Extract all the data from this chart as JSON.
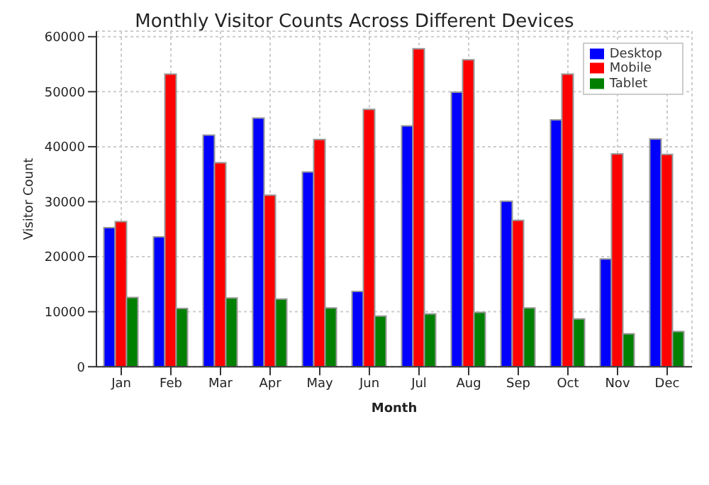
{
  "chart_data": {
    "type": "bar",
    "title": "Monthly Visitor Counts Across Different Devices",
    "xlabel": "Month",
    "ylabel": "Visitor Count",
    "categories": [
      "Jan",
      "Feb",
      "Mar",
      "Apr",
      "May",
      "Jun",
      "Jul",
      "Aug",
      "Sep",
      "Oct",
      "Nov",
      "Dec"
    ],
    "series": [
      {
        "name": "Desktop",
        "color": "#0000ff",
        "values": [
          25300,
          23600,
          42100,
          45200,
          35400,
          13700,
          43800,
          49900,
          30100,
          44900,
          19600,
          41400
        ]
      },
      {
        "name": "Mobile",
        "color": "#ff0000",
        "values": [
          26400,
          53200,
          37100,
          31200,
          41300,
          46800,
          57800,
          55800,
          26600,
          53200,
          38700,
          38600
        ]
      },
      {
        "name": "Tablet",
        "color": "#008000",
        "values": [
          12600,
          10600,
          12500,
          12300,
          10700,
          9200,
          9600,
          9900,
          10700,
          8700,
          6000,
          6400
        ]
      }
    ],
    "ylim": [
      0,
      61000
    ],
    "yticks": [
      0,
      10000,
      20000,
      30000,
      40000,
      50000,
      60000
    ],
    "grid": true,
    "legend": "top right"
  }
}
